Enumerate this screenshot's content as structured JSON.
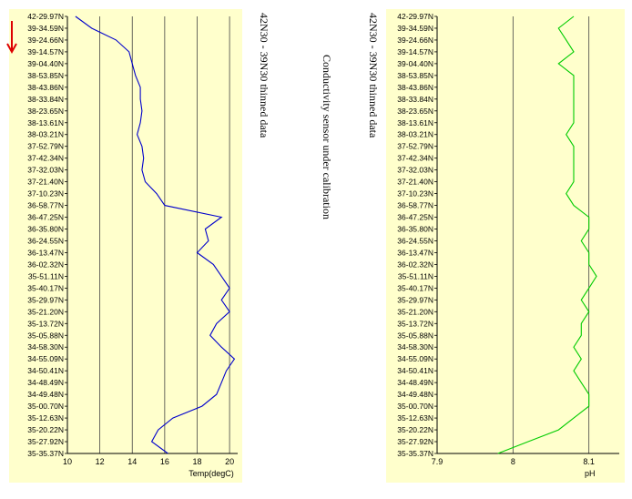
{
  "titles": {
    "left": "42N30 - 39N30 thinned data",
    "middle": "Conductivity sensor under calibration",
    "right": "42N30 - 39N30 thinned data"
  },
  "colors": {
    "panel_bg": "#ffffcc",
    "temp_line": "#0000cc",
    "ph_line": "#00cc00",
    "arrow": "#dd0000",
    "grid": "#444444"
  },
  "chart_data": [
    {
      "type": "line",
      "xlabel": "Temp(degC)",
      "ylabel": "",
      "xlim": [
        10,
        20.5
      ],
      "xticks": [
        10,
        12,
        14,
        16,
        18,
        20
      ],
      "grid": true,
      "orientation": "depth-profile",
      "y_categories": [
        "42-29.97N",
        "39-34.59N",
        "39-24.66N",
        "39-14.57N",
        "39-04.40N",
        "38-53.85N",
        "38-43.86N",
        "38-33.84N",
        "38-23.65N",
        "38-13.61N",
        "38-03.21N",
        "37-52.79N",
        "37-42.34N",
        "37-32.03N",
        "37-21.40N",
        "37-10.23N",
        "36-58.77N",
        "36-47.25N",
        "36-35.80N",
        "36-24.55N",
        "36-13.47N",
        "36-02.32N",
        "35-51.11N",
        "35-40.17N",
        "35-29.97N",
        "35-21.20N",
        "35-13.72N",
        "35-05.88N",
        "34-58.30N",
        "34-55.09N",
        "34-50.41N",
        "34-48.49N",
        "34-49.48N",
        "35-00.70N",
        "35-12.63N",
        "35-20.22N",
        "35-27.92N",
        "35-35.37N"
      ],
      "series": [
        {
          "values": [
            10.5,
            11.5,
            13,
            13.8,
            14,
            14.2,
            14.5,
            14.5,
            14.6,
            14.5,
            14.3,
            14.6,
            14.7,
            14.6,
            14.8,
            15.5,
            16,
            19.5,
            18.5,
            18.7,
            18,
            19,
            19.5,
            20,
            19.5,
            20,
            19.2,
            18.8,
            19.5,
            20.3,
            19.8,
            19.5,
            19.2,
            18.3,
            16.5,
            15.6,
            15.2,
            16.2
          ]
        }
      ]
    },
    {
      "type": "line",
      "xlabel": "pH",
      "ylabel": "",
      "xlim": [
        7.9,
        8.14
      ],
      "xticks": [
        7.9,
        8,
        8.1
      ],
      "grid": true,
      "orientation": "depth-profile",
      "y_categories": [
        "42-29.97N",
        "39-34.59N",
        "39-24.66N",
        "39-14.57N",
        "39-04.40N",
        "38-53.85N",
        "38-43.86N",
        "38-33.84N",
        "38-23.65N",
        "38-13.61N",
        "38-03.21N",
        "37-52.79N",
        "37-42.34N",
        "37-32.03N",
        "37-21.40N",
        "37-10.23N",
        "36-58.77N",
        "36-47.25N",
        "36-35.80N",
        "36-24.55N",
        "36-13.47N",
        "36-02.32N",
        "35-51.11N",
        "35-40.17N",
        "35-29.97N",
        "35-21.20N",
        "35-13.72N",
        "35-05.88N",
        "34-58.30N",
        "34-55.09N",
        "34-50.41N",
        "34-48.49N",
        "34-49.48N",
        "35-00.70N",
        "35-12.63N",
        "35-20.22N",
        "35-27.92N",
        "35-35.37N"
      ],
      "series": [
        {
          "values": [
            8.08,
            8.06,
            8.07,
            8.08,
            8.06,
            8.08,
            8.08,
            8.08,
            8.08,
            8.08,
            8.07,
            8.08,
            8.08,
            8.08,
            8.08,
            8.07,
            8.08,
            8.1,
            8.1,
            8.09,
            8.1,
            8.1,
            8.11,
            8.1,
            8.09,
            8.1,
            8.09,
            8.09,
            8.08,
            8.09,
            8.08,
            8.09,
            8.1,
            8.1,
            8.08,
            8.06,
            8.02,
            7.98
          ]
        }
      ]
    }
  ]
}
